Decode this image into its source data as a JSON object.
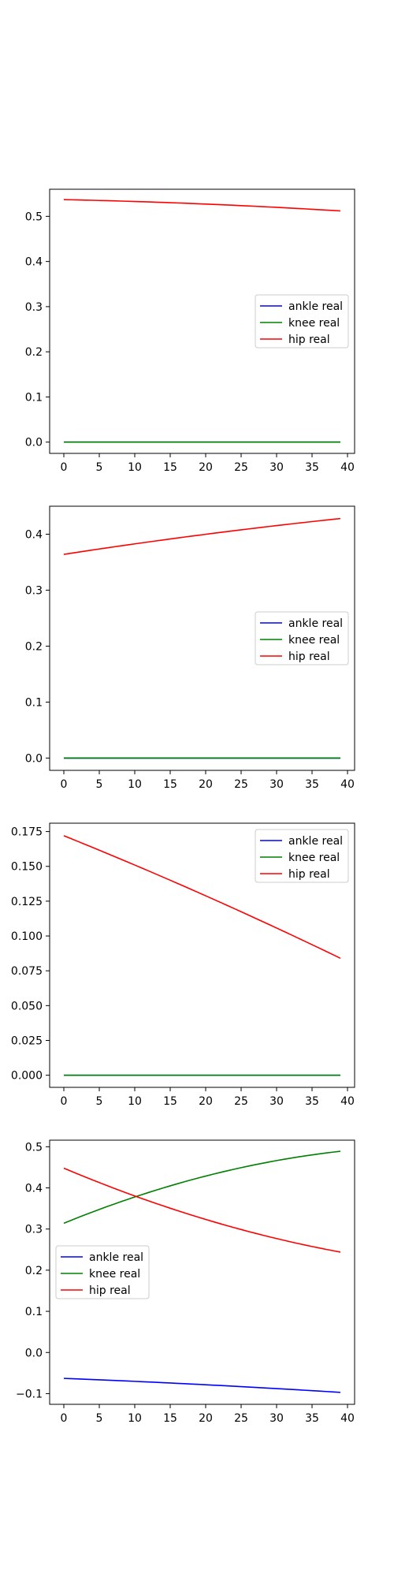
{
  "figure": {
    "background": "#ffffff"
  },
  "chart_data": [
    {
      "type": "line",
      "x": {
        "start": 0,
        "end": 39,
        "step": 1
      },
      "xlim": [
        -2,
        41
      ],
      "ylim": [
        -0.025,
        0.56
      ],
      "xticks": [
        0,
        5,
        10,
        15,
        20,
        25,
        30,
        35,
        40
      ],
      "xtick_labels": [
        "0",
        "5",
        "10",
        "15",
        "20",
        "25",
        "30",
        "35",
        "40"
      ],
      "yticks": [
        0.0,
        0.1,
        0.2,
        0.3,
        0.4,
        0.5
      ],
      "ytick_labels": [
        "0.0",
        "0.1",
        "0.2",
        "0.3",
        "0.4",
        "0.5"
      ],
      "legend_position": "center-right",
      "grid": false,
      "series": [
        {
          "name": "ankle real",
          "color": "#0000ff",
          "start": 0.0,
          "end": 0.0,
          "curve": 0
        },
        {
          "name": "knee real",
          "color": "#008000",
          "start": 0.0,
          "end": 0.0,
          "curve": 0
        },
        {
          "name": "hip real",
          "color": "#ff0000",
          "start": 0.537,
          "end": 0.512,
          "curve": 0.003
        }
      ]
    },
    {
      "type": "line",
      "x": {
        "start": 0,
        "end": 39,
        "step": 1
      },
      "xlim": [
        -2,
        41
      ],
      "ylim": [
        -0.022,
        0.45
      ],
      "xticks": [
        0,
        5,
        10,
        15,
        20,
        25,
        30,
        35,
        40
      ],
      "xtick_labels": [
        "0",
        "5",
        "10",
        "15",
        "20",
        "25",
        "30",
        "35",
        "40"
      ],
      "yticks": [
        0.0,
        0.1,
        0.2,
        0.3,
        0.4
      ],
      "ytick_labels": [
        "0.0",
        "0.1",
        "0.2",
        "0.3",
        "0.4"
      ],
      "legend_position": "center-right",
      "grid": false,
      "series": [
        {
          "name": "ankle real",
          "color": "#0000ff",
          "start": 0.0,
          "end": 0.0,
          "curve": 0
        },
        {
          "name": "knee real",
          "color": "#008000",
          "start": 0.0,
          "end": 0.0,
          "curve": 0
        },
        {
          "name": "hip real",
          "color": "#ff0000",
          "start": 0.364,
          "end": 0.428,
          "curve": 0.003
        }
      ]
    },
    {
      "type": "line",
      "x": {
        "start": 0,
        "end": 39,
        "step": 1
      },
      "xlim": [
        -2,
        41
      ],
      "ylim": [
        -0.0087,
        0.181
      ],
      "xticks": [
        0,
        5,
        10,
        15,
        20,
        25,
        30,
        35,
        40
      ],
      "xtick_labels": [
        "0",
        "5",
        "10",
        "15",
        "20",
        "25",
        "30",
        "35",
        "40"
      ],
      "yticks": [
        0.0,
        0.025,
        0.05,
        0.075,
        0.1,
        0.125,
        0.15,
        0.175
      ],
      "ytick_labels": [
        "0.000",
        "0.025",
        "0.050",
        "0.075",
        "0.100",
        "0.125",
        "0.150",
        "0.175"
      ],
      "legend_position": "upper-right",
      "grid": false,
      "series": [
        {
          "name": "ankle real",
          "color": "#0000ff",
          "start": 0.0,
          "end": 0.0,
          "curve": 0
        },
        {
          "name": "knee real",
          "color": "#008000",
          "start": 0.0,
          "end": 0.0,
          "curve": 0
        },
        {
          "name": "hip real",
          "color": "#ff0000",
          "start": 0.172,
          "end": 0.084,
          "curve": 0.002
        }
      ]
    },
    {
      "type": "line",
      "x": {
        "start": 0,
        "end": 39,
        "step": 1
      },
      "xlim": [
        -2,
        41
      ],
      "ylim": [
        -0.126,
        0.516
      ],
      "xticks": [
        0,
        5,
        10,
        15,
        20,
        25,
        30,
        35,
        40
      ],
      "xtick_labels": [
        "0",
        "5",
        "10",
        "15",
        "20",
        "25",
        "30",
        "35",
        "40"
      ],
      "yticks": [
        -0.1,
        0.0,
        0.1,
        0.2,
        0.3,
        0.4,
        0.5
      ],
      "ytick_labels": [
        "−0.1",
        "0.0",
        "0.1",
        "0.2",
        "0.3",
        "0.4",
        "0.5"
      ],
      "legend_position": "center-left",
      "grid": false,
      "series": [
        {
          "name": "ankle real",
          "color": "#0000ff",
          "start": -0.063,
          "end": -0.097,
          "curve": 0.002
        },
        {
          "name": "knee real",
          "color": "#008000",
          "start": 0.314,
          "end": 0.489,
          "curve": 0.025
        },
        {
          "name": "hip real",
          "color": "#ff0000",
          "start": 0.448,
          "end": 0.244,
          "curve": -0.02
        }
      ]
    }
  ]
}
